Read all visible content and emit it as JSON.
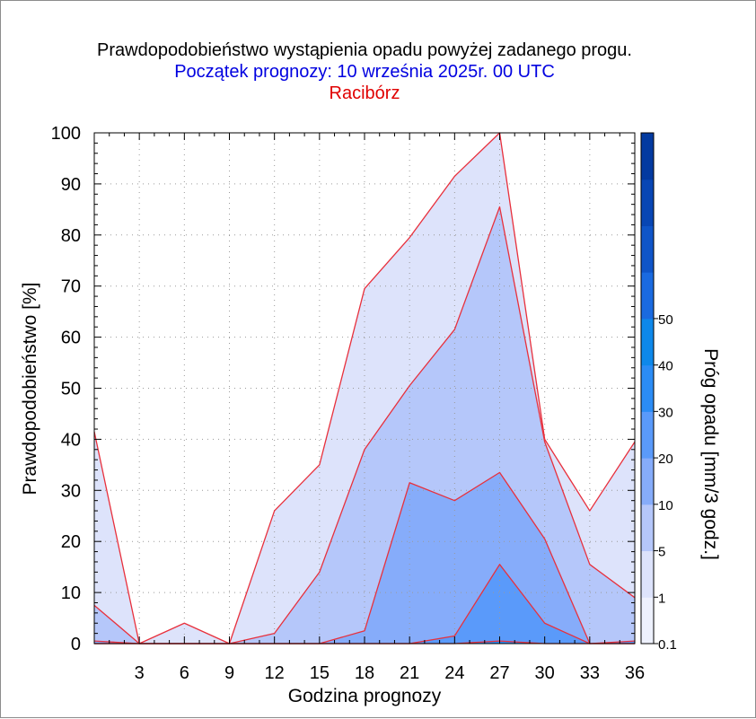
{
  "header": {
    "title": "Prawdopodobieństwo wystąpienia opadu powyżej zadanego progu.",
    "subtitle": "Początek prognozy: 10 września 2025r. 00 UTC",
    "location": "Racibórz"
  },
  "colors": {
    "title": "#000000",
    "subtitle": "#0000e0",
    "location": "#e00000",
    "series_outline": "#e8303c"
  },
  "chart_data": {
    "type": "area",
    "title": "Prawdopodobieństwo wystąpienia opadu powyżej zadanego progu.",
    "xlabel": "Godzina prognozy",
    "ylabel": "Prawdopodobieństwo [%]",
    "xlim": [
      0,
      36
    ],
    "ylim": [
      0,
      100
    ],
    "x_ticks": [
      3,
      6,
      9,
      12,
      15,
      18,
      21,
      24,
      27,
      30,
      33,
      36
    ],
    "y_ticks": [
      0,
      10,
      20,
      30,
      40,
      50,
      60,
      70,
      80,
      90,
      100
    ],
    "grid": true,
    "x": [
      0,
      3,
      6,
      9,
      12,
      15,
      18,
      21,
      24,
      27,
      30,
      33,
      36
    ],
    "series": [
      {
        "threshold": 0.1,
        "color": "#dde3fb",
        "values": [
          41.5,
          0,
          4,
          0,
          26,
          35,
          69.5,
          79.5,
          91.5,
          100,
          40,
          26,
          39.5
        ]
      },
      {
        "threshold": 1,
        "color": "#b5c7fa",
        "values": [
          7.5,
          0,
          0,
          0,
          2,
          14,
          38,
          50.5,
          61.5,
          85.5,
          39.5,
          15.5,
          9
        ]
      },
      {
        "threshold": 5,
        "color": "#86acfa",
        "values": [
          0.5,
          0,
          0,
          0,
          0,
          0,
          2.5,
          31.5,
          28,
          33.5,
          20.5,
          0,
          0
        ]
      },
      {
        "threshold": 10,
        "color": "#5a9afa",
        "values": [
          0,
          0,
          0,
          0,
          0,
          0,
          0,
          0,
          1.5,
          15.5,
          4,
          0,
          0.5
        ]
      },
      {
        "threshold": 20,
        "color": "#2b8cf5",
        "values": [
          0,
          0,
          0,
          0,
          0,
          0,
          0,
          0,
          0,
          0.5,
          0,
          0,
          0
        ]
      }
    ],
    "colorbar": {
      "label": "Próg opadu [mm/3 godz.]",
      "ticks": [
        "0.1",
        "1",
        "5",
        "10",
        "20",
        "30",
        "40",
        "50"
      ],
      "colors": [
        "#eef1fd",
        "#dde3fb",
        "#b5c7fa",
        "#86acfa",
        "#5a9afa",
        "#2b8cf5",
        "#0e88ea",
        "#1a6ae0",
        "#0f55c8",
        "#0846b4",
        "#033aa0"
      ]
    }
  }
}
